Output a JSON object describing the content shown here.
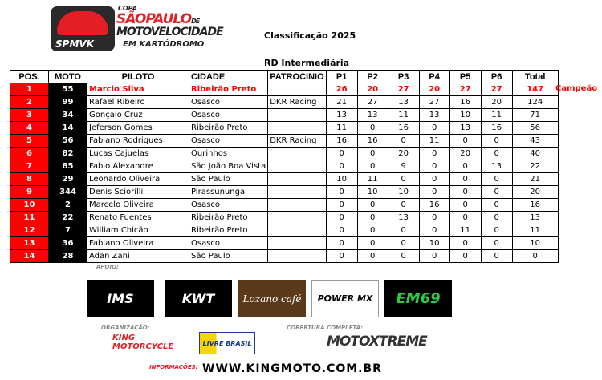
{
  "logo": {
    "copa": "COPA",
    "sao_paulo": "SÃOPAULO",
    "de": "DE",
    "motovelocidade": "MOTOVELOCIDADE",
    "em_kartodromo": "EM KARTÓDROMO",
    "badge": "SPMVK"
  },
  "header": {
    "title": "Classificação 2025",
    "category": "RD Intermediária"
  },
  "table": {
    "columns": [
      "POS.",
      "MOTO",
      "PILOTO",
      "CIDADE",
      "PATROCINIO",
      "P1",
      "P2",
      "P3",
      "P4",
      "P5",
      "P6",
      "Total"
    ],
    "rows": [
      [
        "1",
        "55",
        "Marcio Silva",
        "Ribeirão Preto",
        "",
        "26",
        "20",
        "27",
        "20",
        "27",
        "27",
        "147"
      ],
      [
        "2",
        "99",
        "Rafael Ribeiro",
        "Osasco",
        "DKR Racing",
        "21",
        "27",
        "13",
        "27",
        "16",
        "20",
        "124"
      ],
      [
        "3",
        "34",
        "Gonçalo Cruz",
        "Osasco",
        "",
        "13",
        "13",
        "11",
        "13",
        "10",
        "11",
        "71"
      ],
      [
        "4",
        "14",
        "Jeferson Gomes",
        "Ribeirão Preto",
        "",
        "11",
        "0",
        "16",
        "0",
        "13",
        "16",
        "56"
      ],
      [
        "5",
        "56",
        "Fabiano Rodrigues",
        "Osasco",
        "DKR Racing",
        "16",
        "16",
        "0",
        "11",
        "0",
        "0",
        "43"
      ],
      [
        "6",
        "82",
        "Lucas Cajuelas",
        "Ourinhos",
        "",
        "0",
        "0",
        "20",
        "0",
        "20",
        "0",
        "40"
      ],
      [
        "7",
        "85",
        "Fabio Alexandre",
        "São João Boa Vista",
        "",
        "0",
        "0",
        "9",
        "0",
        "0",
        "13",
        "22"
      ],
      [
        "8",
        "29",
        "Leonardo Oliveira",
        "São Paulo",
        "",
        "10",
        "11",
        "0",
        "0",
        "0",
        "0",
        "21"
      ],
      [
        "9",
        "344",
        "Denis Sciorilli",
        "Pirassununga",
        "",
        "0",
        "10",
        "10",
        "0",
        "0",
        "0",
        "20"
      ],
      [
        "10",
        "2",
        "Marcelo Oliveira",
        "Osasco",
        "",
        "0",
        "0",
        "0",
        "16",
        "0",
        "0",
        "16"
      ],
      [
        "11",
        "22",
        "Renato Fuentes",
        "Ribeirão Preto",
        "",
        "0",
        "0",
        "13",
        "0",
        "0",
        "0",
        "13"
      ],
      [
        "12",
        "7",
        "William Chicão",
        "Ribeirão Preto",
        "",
        "0",
        "0",
        "0",
        "0",
        "11",
        "0",
        "11"
      ],
      [
        "13",
        "36",
        "Fabiano Oliveira",
        "Osasco",
        "",
        "0",
        "0",
        "0",
        "10",
        "0",
        "0",
        "10"
      ],
      [
        "14",
        "28",
        "Adan Zani",
        "São Paulo",
        "",
        "0",
        "0",
        "0",
        "0",
        "0",
        "0",
        "0"
      ]
    ],
    "champion_label": "Campeão"
  },
  "sponsors": {
    "apoio_label": "APOIO:",
    "items": [
      "IMS",
      "KWT",
      "Lozano café",
      "POWER MX",
      "EM69"
    ],
    "organizacao_label": "ORGANIZAÇÃO:",
    "organizers": [
      "KING MOTORCYCLE",
      "LIVRE BRASIL"
    ],
    "cobertura_label": "COBERTURA COMPLETA:",
    "coverage": "MOTOXTREME"
  },
  "footer": {
    "info_label": "INFORMAÇÕES:",
    "url": "WWW.KINGMOTO.COM.BR"
  },
  "colors": {
    "accent": "#ff0000",
    "moto_bg": "#000000"
  }
}
